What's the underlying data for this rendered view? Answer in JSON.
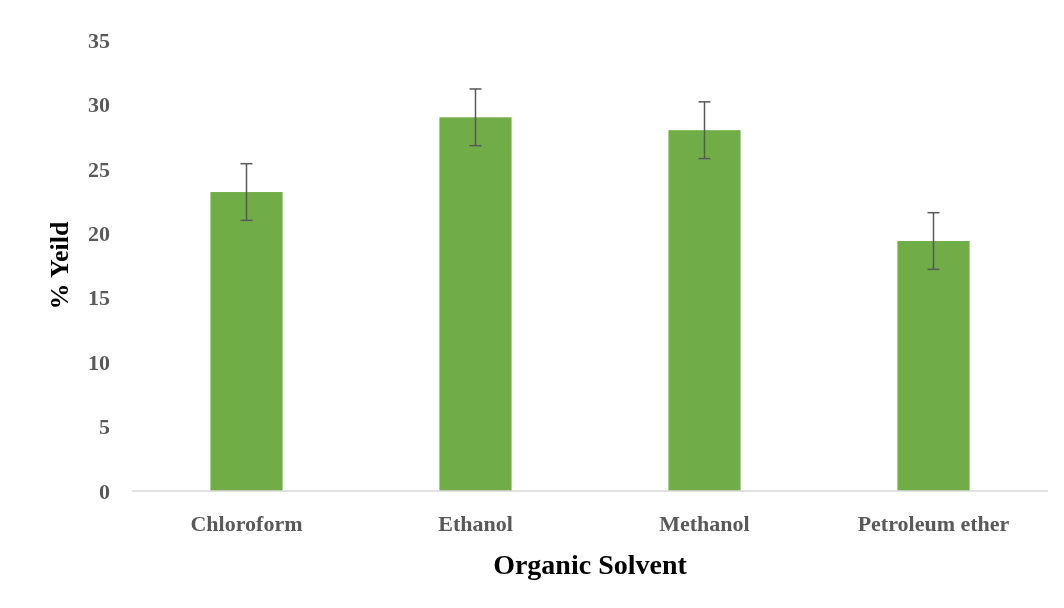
{
  "chart_data": {
    "type": "bar",
    "xlabel": "Organic Solvent",
    "ylabel": "% Yeild",
    "categories": [
      "Chloroform",
      "Ethanol",
      "Methanol",
      "Petroleum ether"
    ],
    "values": [
      23.2,
      29.0,
      28.0,
      19.4
    ],
    "errors": [
      2.2,
      2.2,
      2.2,
      2.2
    ],
    "color": "#70ad47",
    "ylim": [
      0,
      35
    ],
    "yticks": [
      0,
      5,
      10,
      15,
      20,
      25,
      30,
      35
    ],
    "grid": false
  }
}
